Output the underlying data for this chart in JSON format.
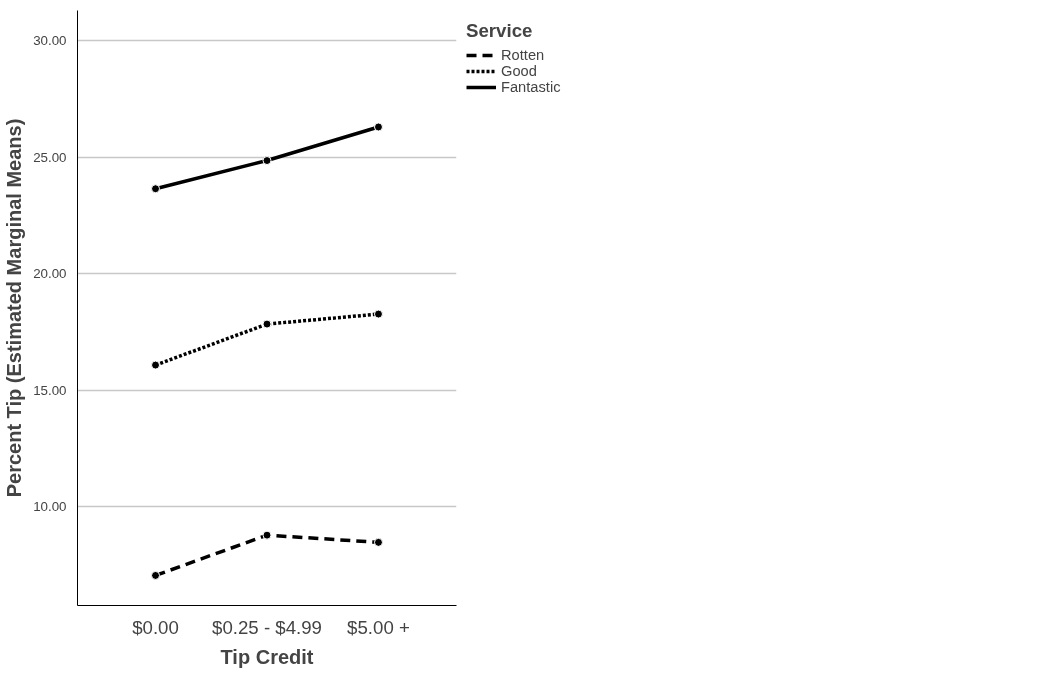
{
  "chart_data": {
    "type": "line",
    "xlabel": "Tip Credit",
    "ylabel": "Percent Tip (Estimated Marginal Means)",
    "legend_title": "Service",
    "categories": [
      "$0.00",
      "$0.25 - $4.99",
      "$5.00 +"
    ],
    "series": [
      {
        "name": "Rotten",
        "color": "#000000",
        "line_style": "dashed",
        "values": [
          7.05,
          8.78,
          8.47
        ]
      },
      {
        "name": "Good",
        "color": "#000000",
        "line_style": "dotted",
        "values": [
          16.08,
          17.84,
          18.27
        ]
      },
      {
        "name": "Fantastic",
        "color": "#000000",
        "line_style": "solid",
        "values": [
          23.65,
          24.86,
          26.3
        ]
      }
    ],
    "ylim": [
      5.76,
      31.3
    ],
    "yticks": [
      {
        "value": 10,
        "label": "10.00"
      },
      {
        "value": 15,
        "label": "15.00"
      },
      {
        "value": 20,
        "label": "20.00"
      },
      {
        "value": 25,
        "label": "25.00"
      },
      {
        "value": 30,
        "label": "30.00"
      }
    ],
    "grid": "y",
    "legend": "right",
    "marker": "circle"
  }
}
